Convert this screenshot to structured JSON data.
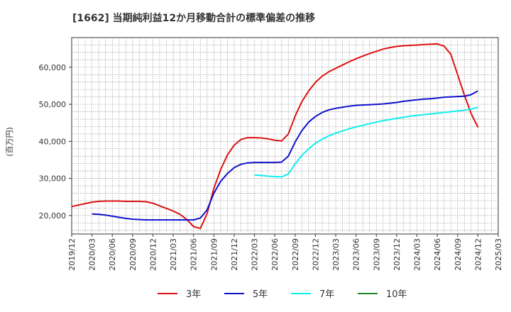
{
  "chart_data": {
    "type": "line",
    "title": "[1662]  当期純利益12か月移動合計の標準偏差の推移",
    "ylabel": "(百万円)",
    "xlabel": "",
    "ylim": [
      15000,
      68000
    ],
    "y_ticks": [
      "20,000",
      "30,000",
      "40,000",
      "50,000",
      "60,000"
    ],
    "y_tick_values": [
      20000,
      30000,
      40000,
      50000,
      60000
    ],
    "x_ticks": [
      "2019/12",
      "2020/03",
      "2020/06",
      "2020/09",
      "2020/12",
      "2021/03",
      "2021/06",
      "2021/09",
      "2021/12",
      "2022/03",
      "2022/06",
      "2022/09",
      "2022/12",
      "2023/03",
      "2023/06",
      "2023/09",
      "2023/12",
      "2024/03",
      "2024/06",
      "2024/09",
      "2024/12",
      "2025/03"
    ],
    "grid": true,
    "legend_position": "bottom",
    "series": [
      {
        "name": "3年",
        "color": "#dd1111",
        "x": [
          "2019/12",
          "2020/01",
          "2020/02",
          "2020/03",
          "2020/04",
          "2020/05",
          "2020/06",
          "2020/07",
          "2020/08",
          "2020/09",
          "2020/10",
          "2020/11",
          "2020/12",
          "2021/01",
          "2021/02",
          "2021/03",
          "2021/04",
          "2021/05",
          "2021/06",
          "2021/07",
          "2021/08",
          "2021/09",
          "2021/10",
          "2021/11",
          "2021/12",
          "2022/01",
          "2022/02",
          "2022/03",
          "2022/04",
          "2022/05",
          "2022/06",
          "2022/07",
          "2022/08",
          "2022/09",
          "2022/10",
          "2022/11",
          "2022/12",
          "2023/01",
          "2023/02",
          "2023/03",
          "2023/04",
          "2023/05",
          "2023/06",
          "2023/07",
          "2023/08",
          "2023/09",
          "2023/10",
          "2023/11",
          "2023/12",
          "2024/01",
          "2024/02",
          "2024/03",
          "2024/04",
          "2024/05",
          "2024/06",
          "2024/07",
          "2024/08",
          "2024/09",
          "2024/10",
          "2024/11",
          "2024/12"
        ],
        "values": [
          22400,
          22800,
          23200,
          23600,
          23800,
          23900,
          23900,
          23900,
          23800,
          23800,
          23800,
          23700,
          23300,
          22600,
          21900,
          21200,
          20300,
          18900,
          17000,
          16500,
          20500,
          27300,
          32400,
          36300,
          39000,
          40500,
          41000,
          41000,
          40900,
          40700,
          40300,
          40100,
          42000,
          46800,
          50700,
          53600,
          55900,
          57600,
          58800,
          59700,
          60600,
          61500,
          62300,
          63000,
          63700,
          64300,
          64900,
          65300,
          65600,
          65800,
          65900,
          66000,
          66100,
          66200,
          66300,
          65700,
          63500,
          58000,
          52500,
          47500,
          43800
        ]
      },
      {
        "name": "5年",
        "color": "#1111cc",
        "x": [
          "2020/03",
          "2020/04",
          "2020/05",
          "2020/06",
          "2020/07",
          "2020/08",
          "2020/09",
          "2020/10",
          "2020/11",
          "2020/12",
          "2021/01",
          "2021/02",
          "2021/03",
          "2021/04",
          "2021/05",
          "2021/06",
          "2021/07",
          "2021/08",
          "2021/09",
          "2021/10",
          "2021/11",
          "2021/12",
          "2022/01",
          "2022/02",
          "2022/03",
          "2022/04",
          "2022/05",
          "2022/06",
          "2022/07",
          "2022/08",
          "2022/09",
          "2022/10",
          "2022/11",
          "2022/12",
          "2023/01",
          "2023/02",
          "2023/03",
          "2023/04",
          "2023/05",
          "2023/06",
          "2023/07",
          "2023/08",
          "2023/09",
          "2023/10",
          "2023/11",
          "2023/12",
          "2024/01",
          "2024/02",
          "2024/03",
          "2024/04",
          "2024/05",
          "2024/06",
          "2024/07",
          "2024/08",
          "2024/09",
          "2024/10",
          "2024/11",
          "2024/12"
        ],
        "values": [
          20400,
          20300,
          20100,
          19800,
          19500,
          19200,
          19000,
          18900,
          18800,
          18800,
          18800,
          18800,
          18800,
          18800,
          18800,
          18800,
          19300,
          21500,
          26000,
          29200,
          31300,
          32900,
          33800,
          34200,
          34300,
          34300,
          34300,
          34300,
          34400,
          36000,
          39800,
          42900,
          45200,
          46700,
          47800,
          48500,
          48900,
          49200,
          49500,
          49700,
          49800,
          49900,
          50000,
          50100,
          50300,
          50500,
          50800,
          51000,
          51200,
          51400,
          51500,
          51700,
          51900,
          52000,
          52100,
          52200,
          52600,
          53600
        ]
      },
      {
        "name": "7年",
        "color": "#11eeee",
        "x": [
          "2022/03",
          "2022/04",
          "2022/05",
          "2022/06",
          "2022/07",
          "2022/08",
          "2022/09",
          "2022/10",
          "2022/11",
          "2022/12",
          "2023/01",
          "2023/02",
          "2023/03",
          "2023/04",
          "2023/05",
          "2023/06",
          "2023/07",
          "2023/08",
          "2023/09",
          "2023/10",
          "2023/11",
          "2023/12",
          "2024/01",
          "2024/02",
          "2024/03",
          "2024/04",
          "2024/05",
          "2024/06",
          "2024/07",
          "2024/08",
          "2024/09",
          "2024/10",
          "2024/11",
          "2024/12"
        ],
        "values": [
          30900,
          30800,
          30600,
          30500,
          30400,
          31200,
          33900,
          36200,
          38000,
          39500,
          40600,
          41500,
          42200,
          42800,
          43400,
          43900,
          44300,
          44800,
          45200,
          45600,
          45900,
          46200,
          46500,
          46800,
          47000,
          47200,
          47400,
          47600,
          47800,
          48000,
          48200,
          48400,
          48700,
          49200
        ]
      },
      {
        "name": "10年",
        "color": "#228822",
        "x": [],
        "values": []
      }
    ]
  }
}
